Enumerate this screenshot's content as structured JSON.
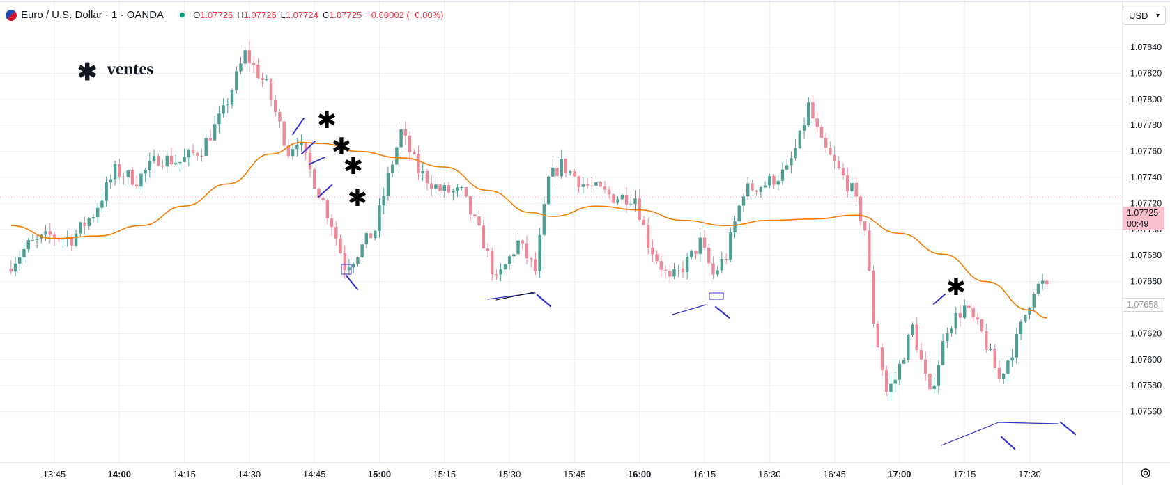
{
  "header": {
    "symbol": "Euro / U.S. Dollar · 1 · OANDA",
    "o_label": "O",
    "o_value": "1.07726",
    "h_label": "H",
    "h_value": "1.07726",
    "l_label": "L",
    "l_value": "1.07724",
    "c_label": "C",
    "c_value": "1.07725",
    "change": "−0.00002 (−0.00%)"
  },
  "currency": "USD",
  "annotation_legend": {
    "symbol": "✱",
    "text": "ventes"
  },
  "price_badge": {
    "price": "1.07725",
    "countdown": "00:49",
    "color": "#f7c0cc"
  },
  "last_price_badge": "1.07658",
  "colors": {
    "up": "#4e9e93",
    "down": "#eb8a98",
    "ma": "#f57c00",
    "drawing": "#3333cc",
    "grid": "#eef0f3"
  },
  "icons": {
    "settings": "gear-icon",
    "currency_dropdown": "chevron-down-icon"
  },
  "chart_data": {
    "type": "candlestick",
    "interval": "1 min",
    "ylim": [
      1.07548,
      1.07858
    ],
    "y_ticks": [
      "1.07840",
      "1.07820",
      "1.07800",
      "1.07780",
      "1.07760",
      "1.07740",
      "1.07720",
      "1.07700",
      "1.07680",
      "1.07660",
      "1.07640",
      "1.07620",
      "1.07600",
      "1.07580",
      "1.07560"
    ],
    "x_ticks": [
      {
        "label": "13:45",
        "bold": false
      },
      {
        "label": "14:00",
        "bold": true
      },
      {
        "label": "14:15",
        "bold": false
      },
      {
        "label": "14:30",
        "bold": false
      },
      {
        "label": "14:45",
        "bold": false
      },
      {
        "label": "15:00",
        "bold": true
      },
      {
        "label": "15:15",
        "bold": false
      },
      {
        "label": "15:30",
        "bold": false
      },
      {
        "label": "15:45",
        "bold": false
      },
      {
        "label": "16:00",
        "bold": true
      },
      {
        "label": "16:15",
        "bold": false
      },
      {
        "label": "16:30",
        "bold": false
      },
      {
        "label": "16:45",
        "bold": false
      },
      {
        "label": "17:00",
        "bold": true
      },
      {
        "label": "17:15",
        "bold": false
      },
      {
        "label": "17:30",
        "bold": false
      }
    ],
    "keypoints": [
      [
        "13:35",
        1.0767
      ],
      [
        "13:40",
        1.07688
      ],
      [
        "13:45",
        1.07695
      ],
      [
        "13:50",
        1.07693
      ],
      [
        "13:55",
        1.07712
      ],
      [
        "14:00",
        1.07745
      ],
      [
        "14:05",
        1.07738
      ],
      [
        "14:10",
        1.07755
      ],
      [
        "14:15",
        1.07752
      ],
      [
        "14:20",
        1.07762
      ],
      [
        "14:25",
        1.0779
      ],
      [
        "14:30",
        1.07835
      ],
      [
        "14:35",
        1.0781
      ],
      [
        "14:40",
        1.0776
      ],
      [
        "14:42",
        1.0777
      ],
      [
        "14:45",
        1.07745
      ],
      [
        "14:50",
        1.07705
      ],
      [
        "14:53",
        1.07672
      ],
      [
        "14:55",
        1.07678
      ],
      [
        "15:00",
        1.077
      ],
      [
        "15:03",
        1.0774
      ],
      [
        "15:06",
        1.07775
      ],
      [
        "15:10",
        1.07745
      ],
      [
        "15:15",
        1.0773
      ],
      [
        "15:20",
        1.07728
      ],
      [
        "15:25",
        1.0769
      ],
      [
        "15:28",
        1.0766
      ],
      [
        "15:33",
        1.0769
      ],
      [
        "15:37",
        1.07668
      ],
      [
        "15:40",
        1.07738
      ],
      [
        "15:43",
        1.0775
      ],
      [
        "15:48",
        1.07735
      ],
      [
        "15:55",
        1.07725
      ],
      [
        "16:00",
        1.07725
      ],
      [
        "16:03",
        1.0769
      ],
      [
        "16:08",
        1.0766
      ],
      [
        "16:12",
        1.07675
      ],
      [
        "16:15",
        1.0769
      ],
      [
        "16:18",
        1.07665
      ],
      [
        "16:21",
        1.0768
      ],
      [
        "16:25",
        1.0773
      ],
      [
        "16:30",
        1.07735
      ],
      [
        "16:35",
        1.07745
      ],
      [
        "16:38",
        1.0777
      ],
      [
        "16:40",
        1.07795
      ],
      [
        "16:43",
        1.07765
      ],
      [
        "16:46",
        1.0775
      ],
      [
        "16:50",
        1.0773
      ],
      [
        "16:53",
        1.077
      ],
      [
        "16:55",
        1.0763
      ],
      [
        "16:58",
        1.07575
      ],
      [
        "17:00",
        1.07585
      ],
      [
        "17:04",
        1.07625
      ],
      [
        "17:08",
        1.07572
      ],
      [
        "17:12",
        1.07625
      ],
      [
        "17:16",
        1.0764
      ],
      [
        "17:20",
        1.0762
      ],
      [
        "17:24",
        1.07585
      ],
      [
        "17:28",
        1.07615
      ],
      [
        "17:32",
        1.07655
      ],
      [
        "17:34",
        1.07658
      ]
    ],
    "moving_average": [
      [
        "13:35",
        1.07703
      ],
      [
        "13:45",
        1.07693
      ],
      [
        "13:55",
        1.07695
      ],
      [
        "14:05",
        1.07703
      ],
      [
        "14:15",
        1.07718
      ],
      [
        "14:25",
        1.07735
      ],
      [
        "14:35",
        1.07758
      ],
      [
        "14:42",
        1.07767
      ],
      [
        "14:47",
        1.07766
      ],
      [
        "14:55",
        1.0776
      ],
      [
        "15:05",
        1.07755
      ],
      [
        "15:15",
        1.07748
      ],
      [
        "15:25",
        1.0773
      ],
      [
        "15:35",
        1.07713
      ],
      [
        "15:40",
        1.0771
      ],
      [
        "15:50",
        1.07718
      ],
      [
        "16:00",
        1.07715
      ],
      [
        "16:10",
        1.07707
      ],
      [
        "16:20",
        1.07703
      ],
      [
        "16:30",
        1.07707
      ],
      [
        "16:40",
        1.07708
      ],
      [
        "16:50",
        1.07711
      ],
      [
        "17:00",
        1.07697
      ],
      [
        "17:10",
        1.07681
      ],
      [
        "17:20",
        1.0766
      ],
      [
        "17:30",
        1.07638
      ],
      [
        "17:34",
        1.07632
      ]
    ],
    "sell_markers": [
      [
        "14:42",
        1.07777
      ],
      [
        "14:45",
        1.07768
      ],
      [
        "14:47",
        1.07755
      ],
      [
        "14:48",
        1.0774
      ],
      [
        "16:56",
        1.07668
      ]
    ],
    "horizontal_dotted_price": 1.07725
  }
}
